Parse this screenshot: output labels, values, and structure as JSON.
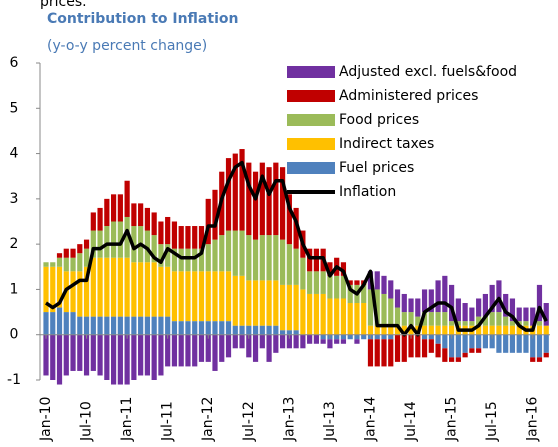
{
  "chart_data": {
    "type": "bar",
    "stacked": true,
    "note": "prices.",
    "title": "Contribution to Inflation",
    "subtitle": "(y-o-y percent change)",
    "categories": [
      "Jan-10",
      null,
      null,
      null,
      null,
      null,
      "Jul-10",
      null,
      null,
      null,
      null,
      null,
      "Jan-11",
      null,
      null,
      null,
      null,
      null,
      "Jul-11",
      null,
      null,
      null,
      null,
      null,
      "Jan-12",
      null,
      null,
      null,
      null,
      null,
      "Jul-12",
      null,
      null,
      null,
      null,
      null,
      "Jan-13",
      null,
      null,
      null,
      null,
      null,
      "Jul-13",
      null,
      null,
      null,
      null,
      null,
      "Jan-14",
      null,
      null,
      null,
      null,
      null,
      "Jul-14",
      null,
      null,
      null,
      null,
      null,
      "Jan-15",
      null,
      null,
      null,
      null,
      null,
      "Jul-15",
      null,
      null,
      null,
      null,
      null,
      "Jan-16",
      null,
      null
    ],
    "series": [
      {
        "name": "Adjusted excl. fuels&food",
        "color": "#7030a0",
        "values": [
          -0.9,
          -1.0,
          -1.1,
          -0.9,
          -0.8,
          -0.8,
          -0.9,
          -0.8,
          -0.9,
          -1.0,
          -1.1,
          -1.1,
          -1.1,
          -1.0,
          -0.9,
          -0.9,
          -1.0,
          -0.9,
          -0.7,
          -0.7,
          -0.7,
          -0.7,
          -0.7,
          -0.6,
          -0.6,
          -0.8,
          -0.6,
          -0.5,
          -0.3,
          -0.3,
          -0.5,
          -0.6,
          -0.3,
          -0.6,
          -0.4,
          -0.3,
          -0.3,
          -0.3,
          -0.3,
          -0.2,
          -0.2,
          -0.1,
          -0.2,
          -0.1,
          -0.1,
          0.0,
          -0.1,
          0.0,
          0.4,
          0.4,
          0.4,
          0.4,
          0.4,
          0.4,
          0.3,
          0.4,
          0.5,
          0.5,
          0.7,
          0.8,
          0.8,
          0.5,
          0.4,
          0.3,
          0.4,
          0.5,
          0.6,
          0.7,
          0.5,
          0.5,
          0.3,
          0.3,
          0.4,
          0.8,
          0.5
        ]
      },
      {
        "name": "Administered prices",
        "color": "#c00000",
        "values": [
          0.0,
          0.0,
          0.1,
          0.2,
          0.2,
          0.2,
          0.2,
          0.4,
          0.5,
          0.6,
          0.6,
          0.6,
          0.8,
          0.5,
          0.5,
          0.5,
          0.5,
          0.5,
          0.6,
          0.6,
          0.5,
          0.5,
          0.5,
          0.5,
          1.0,
          1.1,
          1.4,
          1.6,
          1.7,
          1.8,
          1.6,
          1.5,
          1.6,
          1.5,
          1.6,
          1.6,
          1.1,
          0.9,
          0.6,
          0.5,
          0.5,
          0.5,
          0.3,
          0.4,
          0.3,
          0.1,
          0.1,
          0.1,
          -0.6,
          -0.6,
          -0.6,
          -0.6,
          -0.6,
          -0.6,
          -0.5,
          -0.5,
          -0.4,
          -0.3,
          -0.3,
          -0.3,
          -0.1,
          -0.1,
          -0.1,
          -0.1,
          -0.1,
          0.0,
          0.0,
          0.0,
          0.0,
          0.0,
          0.0,
          0.0,
          -0.1,
          -0.1,
          -0.1
        ]
      },
      {
        "name": "Food prices",
        "color": "#9bbb59",
        "values": [
          0.1,
          0.1,
          0.2,
          0.3,
          0.3,
          0.4,
          0.4,
          0.6,
          0.6,
          0.7,
          0.8,
          0.8,
          0.9,
          0.8,
          0.8,
          0.7,
          0.6,
          0.5,
          0.5,
          0.5,
          0.5,
          0.5,
          0.5,
          0.5,
          0.6,
          0.7,
          0.8,
          0.9,
          1.0,
          1.0,
          1.0,
          0.9,
          1.0,
          1.0,
          1.0,
          1.0,
          0.9,
          0.8,
          0.7,
          0.5,
          0.5,
          0.5,
          0.5,
          0.5,
          0.5,
          0.4,
          0.4,
          0.4,
          0.8,
          0.8,
          0.7,
          0.6,
          0.4,
          0.3,
          0.3,
          0.2,
          0.3,
          0.3,
          0.3,
          0.3,
          0.1,
          0.1,
          0.1,
          0.1,
          0.2,
          0.2,
          0.3,
          0.3,
          0.2,
          0.1,
          0.1,
          0.1,
          0.0,
          0.1,
          0.0
        ]
      },
      {
        "name": "Indirect taxes",
        "color": "#ffc000",
        "values": [
          1.0,
          1.0,
          0.9,
          0.9,
          0.9,
          1.0,
          1.1,
          1.3,
          1.3,
          1.3,
          1.3,
          1.3,
          1.3,
          1.2,
          1.2,
          1.2,
          1.2,
          1.1,
          1.1,
          1.1,
          1.1,
          1.1,
          1.1,
          1.1,
          1.1,
          1.1,
          1.1,
          1.1,
          1.1,
          1.1,
          1.0,
          1.0,
          1.0,
          1.0,
          1.0,
          1.0,
          1.0,
          1.0,
          1.0,
          0.9,
          0.9,
          0.9,
          0.8,
          0.8,
          0.8,
          0.7,
          0.7,
          0.7,
          0.2,
          0.2,
          0.2,
          0.2,
          0.2,
          0.2,
          0.2,
          0.2,
          0.2,
          0.2,
          0.2,
          0.2,
          0.2,
          0.2,
          0.2,
          0.2,
          0.2,
          0.2,
          0.2,
          0.2,
          0.2,
          0.2,
          0.2,
          0.2,
          0.2,
          0.2,
          0.2
        ]
      },
      {
        "name": "Fuel prices",
        "color": "#4f81bd",
        "values": [
          0.5,
          0.5,
          0.6,
          0.5,
          0.5,
          0.4,
          0.4,
          0.4,
          0.4,
          0.4,
          0.4,
          0.4,
          0.4,
          0.4,
          0.4,
          0.4,
          0.4,
          0.4,
          0.4,
          0.3,
          0.3,
          0.3,
          0.3,
          0.3,
          0.3,
          0.3,
          0.3,
          0.3,
          0.2,
          0.2,
          0.2,
          0.2,
          0.2,
          0.2,
          0.2,
          0.1,
          0.1,
          0.1,
          0.0,
          0.0,
          0.0,
          -0.1,
          -0.1,
          -0.1,
          -0.1,
          -0.1,
          -0.1,
          -0.1,
          -0.1,
          -0.1,
          -0.1,
          -0.1,
          0.0,
          0.0,
          0.0,
          0.0,
          -0.1,
          -0.1,
          -0.2,
          -0.3,
          -0.5,
          -0.5,
          -0.4,
          -0.3,
          -0.3,
          -0.3,
          -0.3,
          -0.4,
          -0.4,
          -0.4,
          -0.4,
          -0.4,
          -0.5,
          -0.5,
          -0.4
        ]
      },
      {
        "name": "Inflation",
        "color": "#000000",
        "type": "line",
        "values": [
          0.7,
          0.6,
          0.7,
          1.0,
          1.1,
          1.2,
          1.2,
          1.9,
          1.9,
          2.0,
          2.0,
          2.0,
          2.3,
          1.9,
          2.0,
          1.9,
          1.7,
          1.6,
          1.9,
          1.8,
          1.7,
          1.7,
          1.7,
          1.8,
          2.4,
          2.4,
          3.0,
          3.4,
          3.7,
          3.8,
          3.3,
          3.0,
          3.5,
          3.1,
          3.4,
          3.4,
          2.8,
          2.5,
          2.0,
          1.7,
          1.7,
          1.7,
          1.3,
          1.5,
          1.4,
          1.0,
          0.9,
          1.1,
          1.4,
          0.2,
          0.2,
          0.2,
          0.2,
          0.0,
          0.2,
          0.0,
          0.5,
          0.6,
          0.7,
          0.7,
          0.6,
          0.1,
          0.1,
          0.1,
          0.2,
          0.4,
          0.6,
          0.8,
          0.5,
          0.4,
          0.2,
          0.1,
          0.1,
          0.6,
          0.3
        ]
      }
    ],
    "ylim": [
      -1,
      6
    ],
    "yticks": [
      -1,
      0,
      1,
      2,
      3,
      4,
      5,
      6
    ],
    "grid": false,
    "legend": "upper right"
  }
}
